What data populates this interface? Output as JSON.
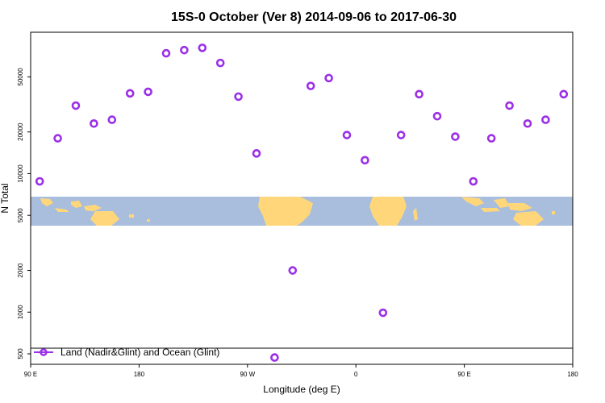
{
  "chart_data": {
    "type": "scatter",
    "title": "15S-0 October (Ver 8)   2014-09-06 to 2017-06-30",
    "xlabel": "Longitude (deg E)",
    "ylabel": "N Total",
    "x_axis": {
      "ticks": [
        90,
        180,
        270,
        360,
        450,
        540
      ],
      "tick_labels": [
        "90 E",
        "180",
        "90 W",
        "0",
        "90 E",
        "180"
      ],
      "range": [
        90,
        540
      ]
    },
    "y_axis": {
      "scale": "log",
      "ticks": [
        500,
        1000,
        2000,
        5000,
        10000,
        20000,
        50000
      ],
      "tick_labels": [
        "500",
        "1000",
        "2000",
        "5000",
        "10000",
        "20000",
        "50000"
      ],
      "range": [
        420,
        105000
      ]
    },
    "background_map": "world map strip (15S-0 latitude band)",
    "colors": {
      "points": "#9B30E8",
      "ocean": "#A8BEDC",
      "land": "#FFD77A",
      "legend_line": "#9B30E8"
    },
    "legend": {
      "position": "bottom-left",
      "entries": [
        "Land (Nadir&Glint) and Ocean (Glint)"
      ]
    },
    "series": [
      {
        "name": "Land (Nadir&Glint) and Ocean (Glint)",
        "points": [
          [
            97.5,
            8800
          ],
          [
            112.5,
            18000
          ],
          [
            127.5,
            31000
          ],
          [
            142.5,
            23000
          ],
          [
            157.5,
            24500
          ],
          [
            172.5,
            38000
          ],
          [
            187.5,
            39000
          ],
          [
            202.5,
            74000
          ],
          [
            217.5,
            78000
          ],
          [
            232.5,
            81000
          ],
          [
            247.5,
            63000
          ],
          [
            262.5,
            36000
          ],
          [
            277.5,
            14000
          ],
          [
            292.5,
            470
          ],
          [
            307.5,
            2000
          ],
          [
            322.5,
            43000
          ],
          [
            337.5,
            49000
          ],
          [
            352.5,
            19000
          ],
          [
            367.5,
            12500
          ],
          [
            382.5,
            990
          ],
          [
            397.5,
            19000
          ],
          [
            412.5,
            37500
          ],
          [
            427.5,
            26000
          ],
          [
            442.5,
            18500
          ],
          [
            457.5,
            8800
          ],
          [
            472.5,
            18000
          ],
          [
            487.5,
            31000
          ],
          [
            502.5,
            23000
          ],
          [
            517.5,
            24500
          ],
          [
            532.5,
            37500
          ]
        ]
      }
    ]
  }
}
